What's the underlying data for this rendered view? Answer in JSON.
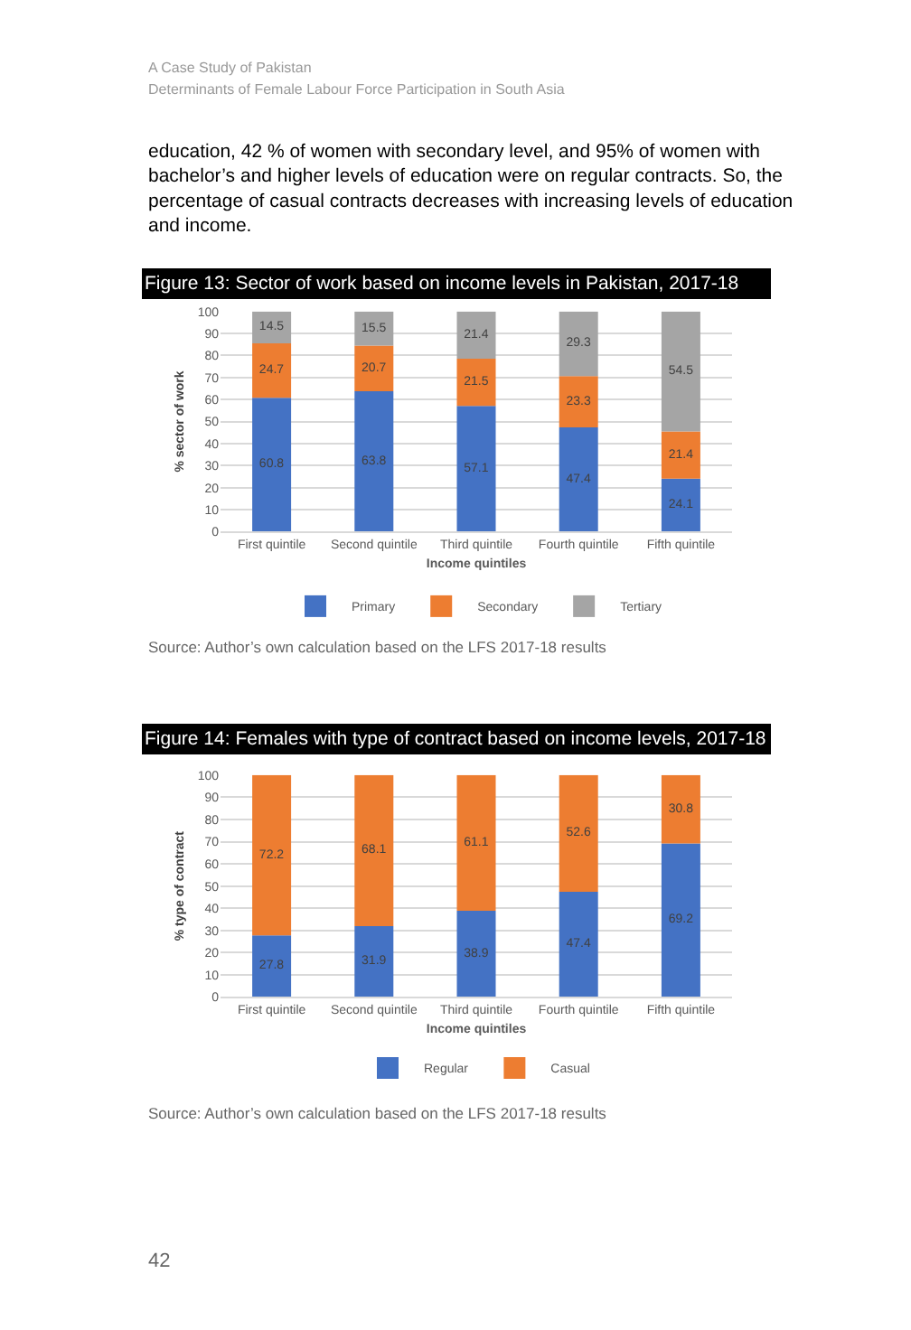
{
  "chart_data": [
    {
      "type": "bar",
      "title": "Figure 13: Sector of work based on income levels in Pakistan, 2017-18",
      "xlabel": "Income quintiles",
      "ylabel": "% sector of work",
      "annotations": [
        "A Case Study of Pakistan",
        "Determinants of Female Labour Force Participation in South Asia",
        "education, 42 % of women with secondary level, and 95% of women with bachelor’s and higher levels of education were on regular contracts. So, the percentage of casual contracts decreases with increasing levels of education and income.",
        "Source: Author’s own calculation based on the LFS 2017-18 results"
      ],
      "categories": [
        "First quintile",
        "Second quintile",
        "Third quintile",
        "Fourth quintile",
        "Fifth quintile"
      ],
      "series": [
        {
          "name": "Primary",
          "color": "#4472c4",
          "values": [
            60.8,
            63.8,
            57.1,
            47.4,
            24.1
          ]
        },
        {
          "name": "Secondary",
          "color": "#ed7d31",
          "values": [
            24.7,
            20.7,
            21.5,
            23.3,
            21.4
          ]
        },
        {
          "name": "Tertiary",
          "color": "#a5a5a5",
          "values": [
            14.5,
            15.5,
            21.4,
            29.3,
            54.5
          ]
        }
      ],
      "stacked": true,
      "data_labels": true,
      "ylim": [
        0,
        100
      ],
      "yticks": [
        0,
        10,
        20,
        30,
        40,
        50,
        60,
        70,
        80,
        90,
        100
      ],
      "grid": "y",
      "legend": "bottom"
    },
    {
      "type": "bar",
      "title": "Figure 14: Females with type of contract based on income levels, 2017-18",
      "xlabel": "Income quintiles",
      "ylabel": "% type of contract",
      "annotations": [
        "Source: Author’s own calculation based on the LFS 2017-18 results",
        "42"
      ],
      "categories": [
        "First quintile",
        "Second quintile",
        "Third quintile",
        "Fourth quintile",
        "Fifth quintile"
      ],
      "series": [
        {
          "name": "Regular",
          "color": "#4472c4",
          "values": [
            27.8,
            31.9,
            38.9,
            47.4,
            69.2
          ]
        },
        {
          "name": "Casual",
          "color": "#ed7d31",
          "values": [
            72.2,
            68.1,
            61.1,
            52.6,
            30.8
          ]
        }
      ],
      "stacked": true,
      "data_labels": true,
      "ylim": [
        0,
        100
      ],
      "yticks": [
        0,
        10,
        20,
        30,
        40,
        50,
        60,
        70,
        80,
        90,
        100
      ],
      "grid": "y",
      "legend": "bottom"
    }
  ]
}
